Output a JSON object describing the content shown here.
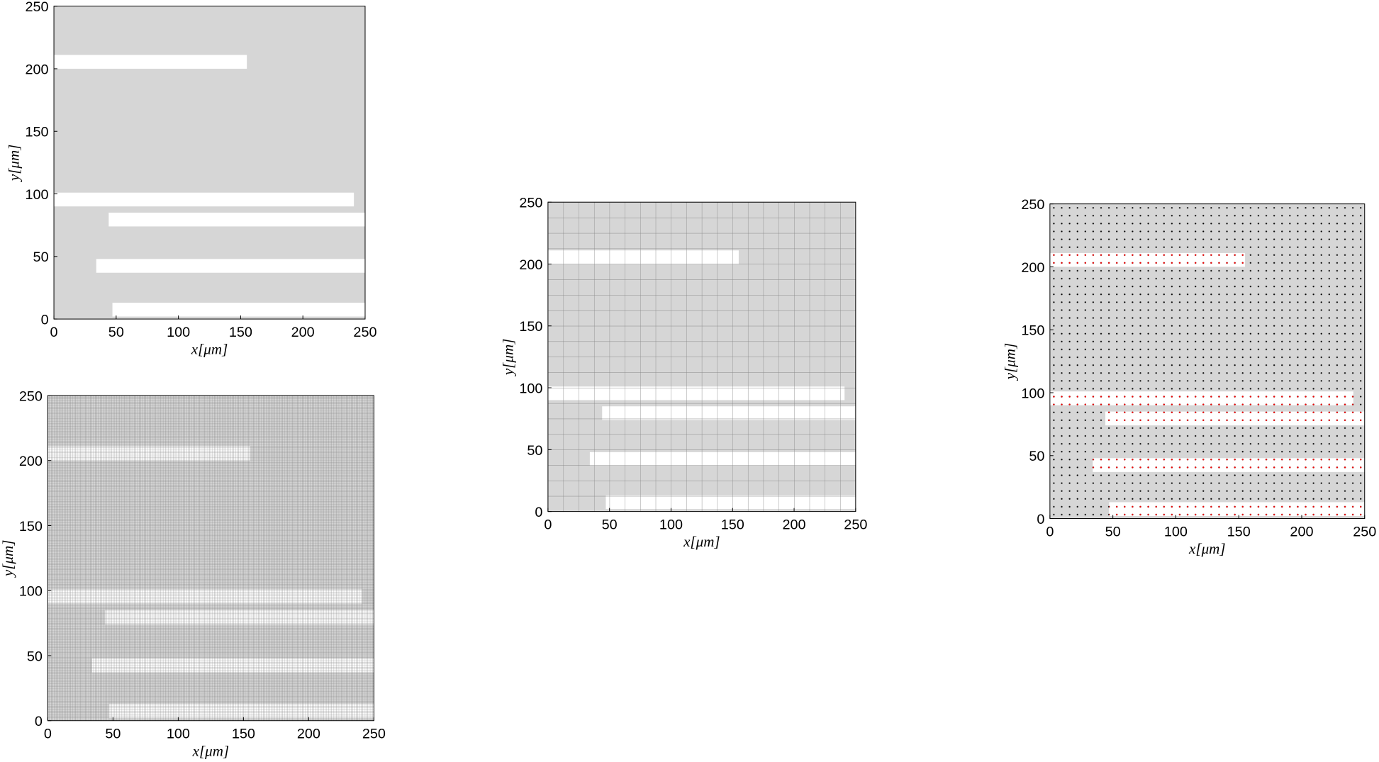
{
  "chart_data": [
    {
      "type": "fiber-map",
      "xlabel": "x[μm]",
      "ylabel": "y[μm]",
      "xlim": [
        0,
        250
      ],
      "ylim": [
        0,
        250
      ],
      "xticks": [
        0,
        50,
        100,
        150,
        200,
        250
      ],
      "yticks": [
        0,
        50,
        100,
        150,
        200,
        250
      ],
      "background": "#d6d6d6",
      "fiber_color": "#ffffff",
      "mesh": {
        "style": "none"
      },
      "fibers": [
        {
          "x": [
            0,
            155
          ],
          "y": [
            200,
            211
          ]
        },
        {
          "x": [
            0,
            241
          ],
          "y": [
            90,
            101
          ]
        },
        {
          "x": [
            44,
            250
          ],
          "y": [
            74,
            85
          ]
        },
        {
          "x": [
            34,
            250
          ],
          "y": [
            37,
            48
          ]
        },
        {
          "x": [
            47,
            250
          ],
          "y": [
            2,
            13
          ]
        }
      ]
    },
    {
      "type": "fiber-map",
      "xlabel": "x[μm]",
      "ylabel": "y[μm]",
      "xlim": [
        0,
        250
      ],
      "ylim": [
        0,
        250
      ],
      "xticks": [
        0,
        50,
        100,
        150,
        200,
        250
      ],
      "yticks": [
        0,
        50,
        100,
        150,
        200,
        250
      ],
      "background": "#d6d6d6",
      "fiber_color": "#ffffff",
      "mesh": {
        "style": "lines",
        "spacing": 12.5,
        "color": "#8a8a8a"
      },
      "fibers": [
        {
          "x": [
            0,
            155
          ],
          "y": [
            200,
            211
          ]
        },
        {
          "x": [
            0,
            241
          ],
          "y": [
            90,
            101
          ]
        },
        {
          "x": [
            44,
            250
          ],
          "y": [
            74,
            85
          ]
        },
        {
          "x": [
            34,
            250
          ],
          "y": [
            37,
            48
          ]
        },
        {
          "x": [
            47,
            250
          ],
          "y": [
            2,
            13
          ]
        }
      ]
    },
    {
      "type": "fiber-map",
      "xlabel": "x[μm]",
      "ylabel": "y[μm]",
      "xlim": [
        0,
        250
      ],
      "ylim": [
        0,
        250
      ],
      "xticks": [
        0,
        50,
        100,
        150,
        200,
        250
      ],
      "yticks": [
        0,
        50,
        100,
        150,
        200,
        250
      ],
      "background": "#d6d6d6",
      "fiber_color": "#ffffff",
      "mesh": {
        "style": "dots",
        "spacing": 6.25,
        "color": "#000000",
        "fiber_color": "#ff0000"
      },
      "fibers": [
        {
          "x": [
            0,
            155
          ],
          "y": [
            200,
            211
          ]
        },
        {
          "x": [
            0,
            241
          ],
          "y": [
            90,
            101
          ]
        },
        {
          "x": [
            44,
            250
          ],
          "y": [
            74,
            85
          ]
        },
        {
          "x": [
            34,
            250
          ],
          "y": [
            37,
            48
          ]
        },
        {
          "x": [
            47,
            250
          ],
          "y": [
            2,
            13
          ]
        }
      ]
    },
    {
      "type": "fiber-map",
      "xlabel": "x[μm]",
      "ylabel": "y[μm]",
      "xlim": [
        0,
        250
      ],
      "ylim": [
        0,
        250
      ],
      "xticks": [
        0,
        50,
        100,
        150,
        200,
        250
      ],
      "yticks": [
        0,
        50,
        100,
        150,
        200,
        250
      ],
      "background": "#d6d6d6",
      "fiber_color": "#ffffff",
      "mesh": {
        "style": "lines",
        "spacing": 1.25,
        "color": "#7a7a7a"
      },
      "fibers": [
        {
          "x": [
            0,
            155
          ],
          "y": [
            200,
            211
          ]
        },
        {
          "x": [
            0,
            241
          ],
          "y": [
            90,
            101
          ]
        },
        {
          "x": [
            44,
            250
          ],
          "y": [
            74,
            85
          ]
        },
        {
          "x": [
            34,
            250
          ],
          "y": [
            37,
            48
          ]
        },
        {
          "x": [
            47,
            250
          ],
          "y": [
            2,
            13
          ]
        }
      ]
    }
  ]
}
